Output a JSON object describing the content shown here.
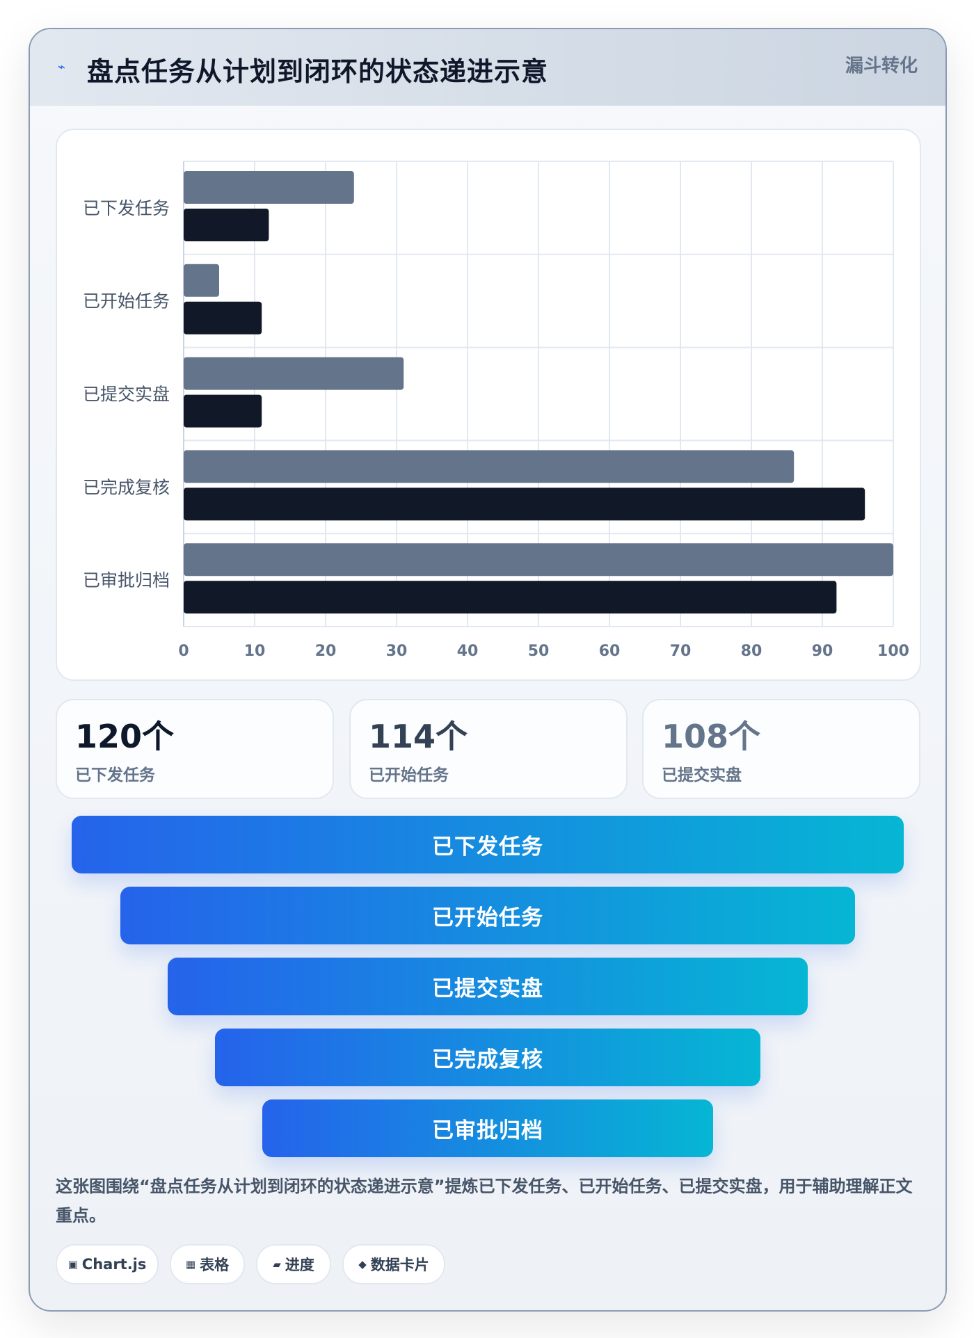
{
  "header": {
    "title": "盘点任务从计划到闭环的状态递进示意",
    "tag": "漏斗转化",
    "icon": "lightning-icon"
  },
  "chart_data": {
    "type": "bar",
    "orientation": "horizontal",
    "categories": [
      "已下发任务",
      "已开始任务",
      "已提交实盘",
      "已完成复核",
      "已审批归档"
    ],
    "series": [
      {
        "values": [
          24,
          5,
          31,
          86,
          100
        ],
        "color": "#64748b"
      },
      {
        "values": [
          12,
          11,
          11,
          96,
          92
        ],
        "color": "#111827"
      }
    ],
    "xlim": [
      0,
      100
    ],
    "xticks": [
      0,
      10,
      20,
      30,
      40,
      50,
      60,
      70,
      80,
      90,
      100
    ],
    "grid": true
  },
  "kpis": [
    {
      "value": "120个",
      "label": "已下发任务",
      "color": "#0f172a"
    },
    {
      "value": "114个",
      "label": "已开始任务",
      "color": "#334155"
    },
    {
      "value": "108个",
      "label": "已提交实盘",
      "color": "#64748b"
    }
  ],
  "funnel": {
    "stages": [
      "已下发任务",
      "已开始任务",
      "已提交实盘",
      "已完成复核",
      "已审批归档"
    ]
  },
  "description": "这张图围绕“盘点任务从计划到闭环的状态递进示意”提炼已下发任务、已开始任务、已提交实盘，用于辅助理解正文重点。",
  "chips": [
    {
      "icon": "chart-icon",
      "glyph": "▣",
      "label": "Chart.js"
    },
    {
      "icon": "table-icon",
      "glyph": "▦",
      "label": "表格"
    },
    {
      "icon": "progress-icon",
      "glyph": "▰",
      "label": "进度"
    },
    {
      "icon": "data-card-icon",
      "glyph": "◆",
      "label": "数据卡片"
    }
  ]
}
